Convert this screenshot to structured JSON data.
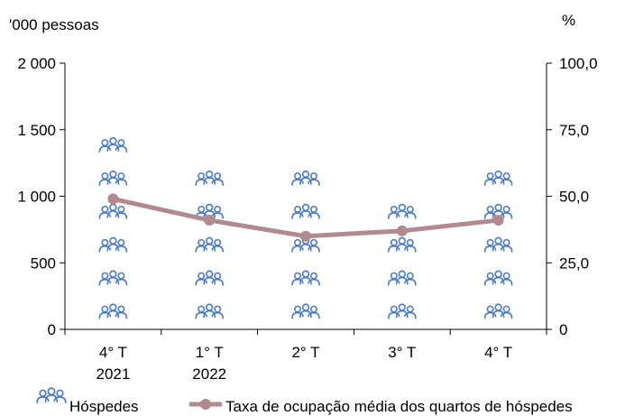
{
  "chart_data": {
    "type": "pictograph-bar-line",
    "categories": [
      {
        "line1": "4° T",
        "line2": "2021"
      },
      {
        "line1": "1° T",
        "line2": "2022"
      },
      {
        "line1": "2° T",
        "line2": ""
      },
      {
        "line1": "3° T",
        "line2": ""
      },
      {
        "line1": "4° T",
        "line2": ""
      }
    ],
    "left_axis": {
      "unit": "'000 pessoas",
      "min": 0,
      "max": 2000,
      "ticks": [
        "0",
        "500",
        "1 000",
        "1 500",
        "2 000"
      ],
      "tick_values": [
        0,
        500,
        1000,
        1500,
        2000
      ]
    },
    "right_axis": {
      "unit": "%",
      "min": 0,
      "max": 100,
      "ticks": [
        "0",
        "25,0",
        "50,0",
        "75,0",
        "100,0"
      ],
      "tick_values": [
        0,
        25,
        50,
        75,
        100
      ]
    },
    "series": [
      {
        "name": "Hóspedes",
        "kind": "pictograph",
        "axis": "left",
        "values": [
          1600,
          1350,
          1250,
          1050,
          1350
        ],
        "color": "#4a7bc4"
      },
      {
        "name": "Taxa de ocupação média dos quartos de hóspedes",
        "kind": "line",
        "axis": "right",
        "values": [
          49.0,
          41.0,
          35.0,
          37.0,
          41.0
        ],
        "color": "#b08a8e"
      }
    ],
    "icon": "people-group-icon",
    "grid": false,
    "legend_position": "bottom"
  }
}
